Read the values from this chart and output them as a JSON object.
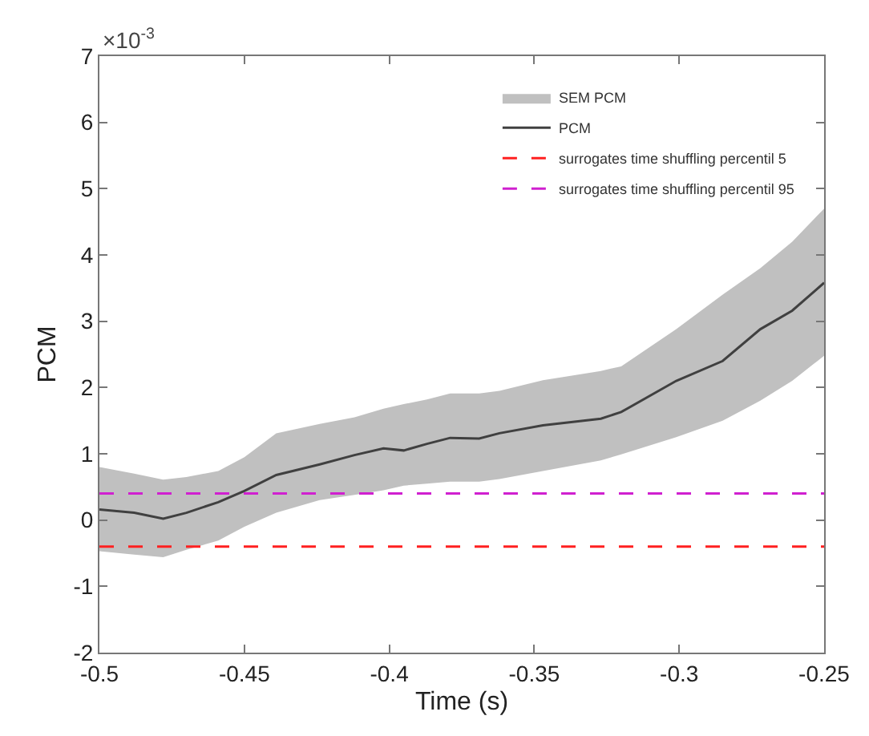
{
  "chart_data": {
    "type": "line",
    "xlabel": "Time (s)",
    "ylabel": "PCM",
    "annotations": [
      "×10$^{-3}$"
    ],
    "x": [
      -0.5,
      -0.488,
      -0.478,
      -0.47,
      -0.459,
      -0.45,
      -0.439,
      -0.424,
      -0.412,
      -0.402,
      -0.395,
      -0.387,
      -0.379,
      -0.369,
      -0.362,
      -0.347,
      -0.327,
      -0.32,
      -0.301,
      -0.285,
      -0.272,
      -0.261,
      -0.25
    ],
    "series": [
      {
        "name": "SEM PCM",
        "type": "area",
        "color": "#c0c0c0",
        "x": [
          -0.5,
          -0.488,
          -0.478,
          -0.47,
          -0.459,
          -0.45,
          -0.439,
          -0.424,
          -0.412,
          -0.402,
          -0.395,
          -0.387,
          -0.379,
          -0.369,
          -0.362,
          -0.347,
          -0.327,
          -0.32,
          -0.301,
          -0.285,
          -0.272,
          -0.261,
          -0.25,
          -0.25,
          -0.261,
          -0.272,
          -0.285,
          -0.301,
          -0.32,
          -0.327,
          -0.347,
          -0.362,
          -0.369,
          -0.379,
          -0.387,
          -0.395,
          -0.402,
          -0.412,
          -0.424,
          -0.439,
          -0.45,
          -0.459,
          -0.47,
          -0.478,
          -0.488,
          -0.5
        ],
        "values": [
          0.8,
          0.7,
          0.61,
          0.65,
          0.74,
          0.95,
          1.31,
          1.45,
          1.55,
          1.68,
          1.75,
          1.82,
          1.91,
          1.91,
          1.95,
          2.11,
          2.25,
          2.32,
          2.88,
          3.4,
          3.8,
          4.2,
          4.7,
          2.48,
          2.1,
          1.8,
          1.5,
          1.25,
          0.99,
          0.9,
          0.74,
          0.62,
          0.58,
          0.58,
          0.55,
          0.52,
          0.45,
          0.38,
          0.3,
          0.11,
          -0.1,
          -0.31,
          -0.45,
          -0.56,
          -0.52,
          -0.47
        ]
      },
      {
        "name": "PCM",
        "color": "#404040",
        "values": [
          0.16,
          0.11,
          0.02,
          0.11,
          0.27,
          0.44,
          0.68,
          0.84,
          0.98,
          1.08,
          1.05,
          1.15,
          1.24,
          1.23,
          1.31,
          1.43,
          1.53,
          1.63,
          2.1,
          2.4,
          2.88,
          3.16,
          3.58
        ]
      }
    ],
    "ref_lines": [
      {
        "axis": "y",
        "value": -0.4,
        "label": "surrogates time shuffling percentil 5",
        "color": "#ff2020",
        "line_style": "dashed"
      },
      {
        "axis": "y",
        "value": 0.4,
        "label": "surrogates time shuffling percentil 95",
        "color": "#d020d0",
        "line_style": "dashed"
      }
    ],
    "xlim": [
      -0.5,
      -0.25
    ],
    "xticks": [
      -0.5,
      -0.45,
      -0.4,
      -0.35,
      -0.3,
      -0.25
    ],
    "ylim": [
      -2,
      7
    ],
    "yticks": [
      -2,
      -1,
      0,
      1,
      2,
      3,
      4,
      5,
      6,
      7
    ],
    "grid": false,
    "legend": "top right",
    "marker": "none"
  }
}
